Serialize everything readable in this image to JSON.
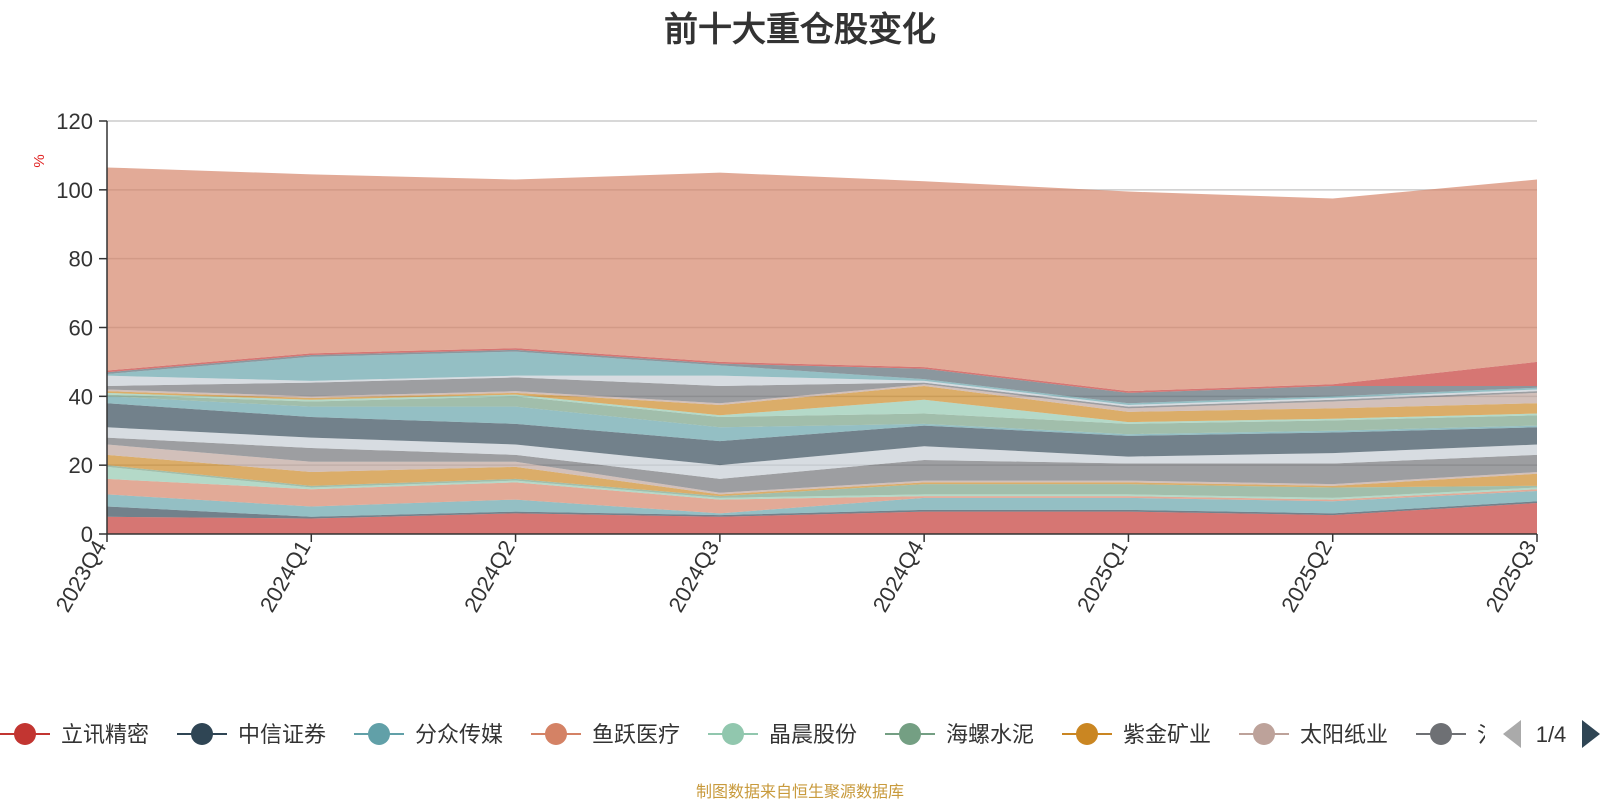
{
  "page": {
    "title": "前十大重仓股变化",
    "footer": "制图数据来自恒生聚源数据库"
  },
  "legend": {
    "page_indicator": "1/4",
    "items": [
      {
        "label": "立讯精密",
        "color": "#c23531"
      },
      {
        "label": "中信证券",
        "color": "#2f4554"
      },
      {
        "label": "分众传媒",
        "color": "#61a0a8"
      },
      {
        "label": "鱼跃医疗",
        "color": "#d48265"
      },
      {
        "label": "晶晨股份",
        "color": "#91c7ae"
      },
      {
        "label": "海螺水泥",
        "color": "#749f83"
      },
      {
        "label": "紫金矿业",
        "color": "#ca8622"
      },
      {
        "label": "太阳纸业",
        "color": "#bda29a"
      },
      {
        "label": "氵",
        "color": "#6e7074"
      }
    ]
  },
  "chart_data": {
    "type": "area",
    "stacked": true,
    "title": "前十大重仓股变化",
    "ylabel": "%",
    "ylim": [
      0,
      120
    ],
    "yticks": [
      0,
      20,
      40,
      60,
      80,
      100,
      120
    ],
    "grid": true,
    "legend_position": "bottom",
    "categories": [
      "2023Q4",
      "2024Q1",
      "2024Q2",
      "2024Q3",
      "2024Q4",
      "2025Q1",
      "2025Q2",
      "2025Q3"
    ],
    "series": [
      {
        "name": "立讯精密",
        "color": "#c23531",
        "values": [
          5,
          4.5,
          6,
          5,
          6.5,
          6.5,
          5.5,
          9
        ]
      },
      {
        "name": "中信证券",
        "color": "#2f4554",
        "values": [
          3,
          0.5,
          0.5,
          0.5,
          0.5,
          0.5,
          0.5,
          0.5
        ]
      },
      {
        "name": "分众传媒",
        "color": "#61a0a8",
        "values": [
          3.5,
          3,
          3.5,
          0.5,
          3.5,
          3.5,
          3.5,
          3
        ]
      },
      {
        "name": "鱼跃医疗",
        "color": "#d48265",
        "values": [
          4.5,
          5,
          5,
          4,
          0.5,
          0.5,
          0.5,
          0.5
        ]
      },
      {
        "name": "晶晨股份",
        "color": "#91c7ae",
        "values": [
          3.5,
          0.5,
          0.5,
          0.5,
          0.5,
          0.5,
          0.5,
          0.5
        ]
      },
      {
        "name": "海螺水泥",
        "color": "#749f83",
        "values": [
          0.5,
          0.5,
          0.5,
          0.5,
          3,
          3,
          3,
          0.5
        ]
      },
      {
        "name": "紫金矿业",
        "color": "#ca8622",
        "values": [
          3,
          4,
          3.5,
          0.5,
          0.5,
          0.5,
          0.5,
          3.5
        ]
      },
      {
        "name": "太阳纸业",
        "color": "#bda29a",
        "values": [
          3,
          3,
          1.5,
          0.5,
          0.5,
          0.5,
          0.5,
          0.5
        ]
      },
      {
        "name": "氵",
        "color": "#6e7074",
        "values": [
          2,
          4,
          2,
          4,
          6,
          5,
          6,
          5
        ]
      },
      {
        "name": "",
        "color": "#c4ccd3",
        "values": [
          3,
          3,
          3,
          4,
          4,
          2,
          3,
          3
        ]
      },
      {
        "name": "",
        "color": "#2f4554",
        "values": [
          7,
          6,
          6,
          7,
          6,
          6,
          6,
          5
        ]
      },
      {
        "name": "",
        "color": "#61a0a8",
        "values": [
          2,
          3,
          5,
          4,
          0.5,
          0.5,
          0.5,
          0.5
        ]
      },
      {
        "name": "",
        "color": "#749f83",
        "values": [
          0.5,
          1.5,
          3,
          3,
          3,
          3,
          3,
          3
        ]
      },
      {
        "name": "",
        "color": "#91c7ae",
        "values": [
          0.5,
          0.5,
          0.5,
          0.5,
          4,
          0.5,
          0.5,
          0.5
        ]
      },
      {
        "name": "",
        "color": "#ca8622",
        "values": [
          0.5,
          0.5,
          0.5,
          3,
          4,
          3,
          3,
          3
        ]
      },
      {
        "name": "",
        "color": "#bda29a",
        "values": [
          0.5,
          0.5,
          0.5,
          0.5,
          0.5,
          1,
          2,
          3
        ]
      },
      {
        "name": "",
        "color": "#6e7074",
        "values": [
          1,
          4,
          4,
          5,
          0.5,
          0.5,
          0.5,
          0.5
        ]
      },
      {
        "name": "",
        "color": "#c4ccd3",
        "values": [
          3,
          0.5,
          0.5,
          3,
          0.5,
          0.5,
          0.5,
          0.5
        ]
      },
      {
        "name": "",
        "color": "#61a0a8",
        "values": [
          0.5,
          7,
          7,
          3,
          0.5,
          0.5,
          0.5,
          0.5
        ]
      },
      {
        "name": "",
        "color": "#546570",
        "values": [
          0.5,
          0.5,
          0.5,
          0.5,
          3,
          3,
          3,
          0.5
        ]
      },
      {
        "name": "",
        "color": "#c23531",
        "values": [
          0.5,
          0.5,
          0.5,
          0.5,
          0.5,
          0.5,
          0.5,
          7
        ]
      },
      {
        "name": "",
        "color": "#d48265",
        "values": [
          59,
          52,
          49,
          55,
          54,
          58,
          54,
          53
        ]
      }
    ]
  }
}
